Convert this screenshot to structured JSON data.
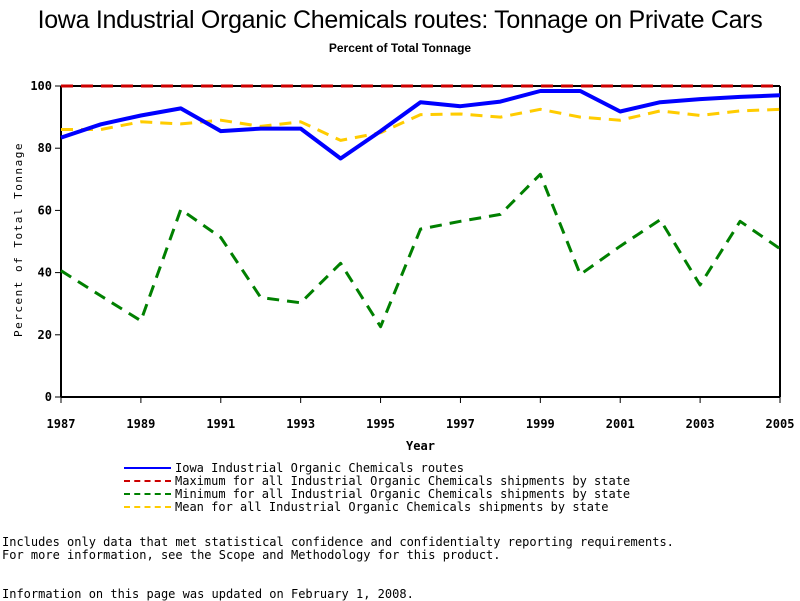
{
  "page": {
    "title": "Iowa Industrial Organic Chemicals routes: Tonnage on Private Cars",
    "subtitle": "Percent of Total Tonnage"
  },
  "chart_data": {
    "type": "line",
    "title": "Iowa Industrial Organic Chemicals routes: Tonnage on Private Cars",
    "subtitle": "Percent of Total Tonnage",
    "xlabel": "Year",
    "ylabel": "Percent of Total Tonnage",
    "x": [
      1987,
      1988,
      1989,
      1990,
      1991,
      1992,
      1993,
      1994,
      1995,
      1996,
      1997,
      1998,
      1999,
      2000,
      2001,
      2002,
      2003,
      2004,
      2005
    ],
    "xlim": [
      1987,
      2005
    ],
    "ylim": [
      0,
      100
    ],
    "xticks": [
      "1987",
      "1989",
      "1991",
      "1993",
      "1995",
      "1997",
      "1999",
      "2001",
      "2003",
      "2005"
    ],
    "yticks": [
      "0",
      "20",
      "40",
      "60",
      "80",
      "100"
    ],
    "grid": false,
    "legend_position": "bottom",
    "series": [
      {
        "name": "Iowa Industrial Organic Chemicals routes",
        "color": "#0000ff",
        "style": "solid",
        "values": [
          83.4,
          87.7,
          90.5,
          92.8,
          85.5,
          86.3,
          86.3,
          76.7,
          85.5,
          94.8,
          93.5,
          95.0,
          98.4,
          98.4,
          91.8,
          94.8,
          95.8,
          96.5,
          97.0
        ]
      },
      {
        "name": "Maximum for all Industrial Organic Chemicals shipments by state",
        "color": "#cc0000",
        "style": "dashed",
        "values": [
          100,
          100,
          100,
          100,
          100,
          100,
          100,
          100,
          100,
          100,
          100,
          100,
          100,
          100,
          100,
          100,
          100,
          100,
          100
        ]
      },
      {
        "name": "Minimum for all Industrial Organic Chemicals shipments by state",
        "color": "#008000",
        "style": "dashed",
        "values": [
          40.6,
          32.5,
          24.5,
          60.3,
          51.3,
          32.0,
          30.3,
          43.0,
          22.6,
          54.0,
          56.5,
          58.7,
          71.6,
          39.4,
          48.5,
          57.0,
          36.0,
          56.5,
          47.7
        ]
      },
      {
        "name": "Mean for all Industrial Organic Chemicals shipments by state",
        "color": "#ffcc00",
        "style": "dashed",
        "values": [
          86.0,
          86.0,
          88.5,
          87.8,
          89.0,
          87.0,
          88.5,
          82.5,
          85.0,
          90.8,
          91.0,
          90.0,
          92.5,
          90.0,
          89.0,
          92.0,
          90.5,
          92.0,
          92.5
        ]
      }
    ]
  },
  "footnotes": {
    "line1": "Includes only data that met statistical confidence and confidentialty reporting requirements.",
    "line2": "For more information, see the Scope and Methodology for this product.",
    "updated": "Information on this page was updated on February 1, 2008."
  }
}
